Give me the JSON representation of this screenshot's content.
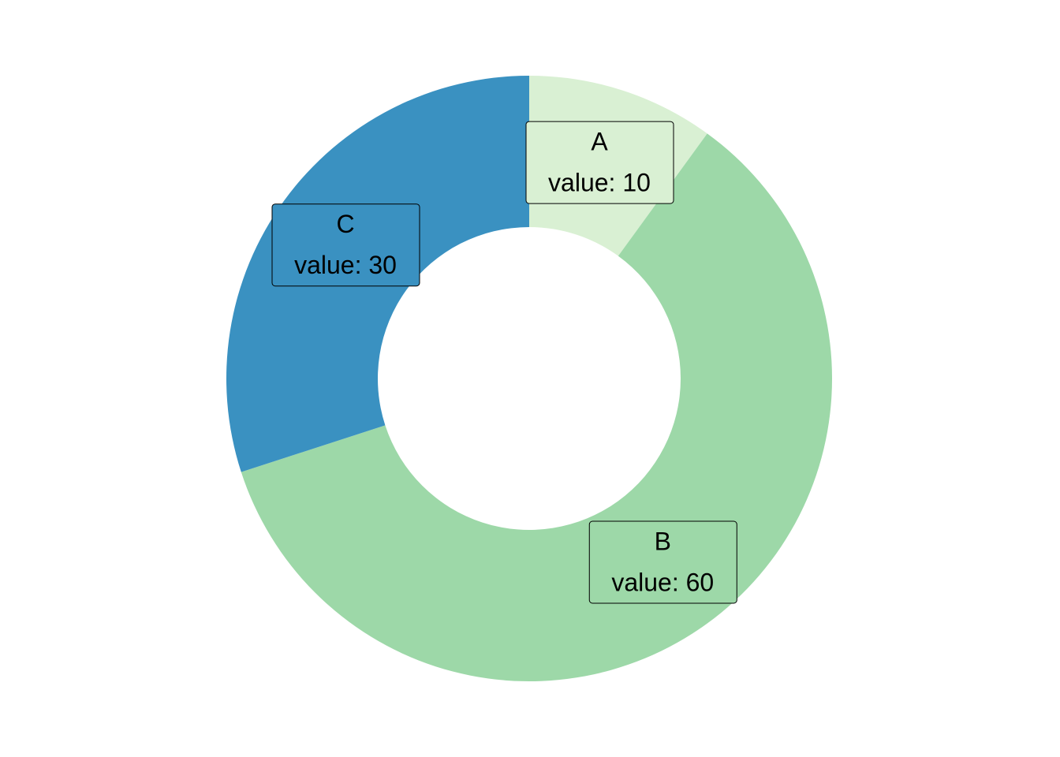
{
  "chart_data": {
    "type": "donut",
    "categories": [
      "A",
      "B",
      "C"
    ],
    "values": [
      10,
      60,
      30
    ],
    "value_labels": [
      "value: 10",
      "value: 60",
      "value: 30"
    ],
    "colors": [
      "#d9f0d3",
      "#9dd8a8",
      "#3a91c1"
    ]
  }
}
